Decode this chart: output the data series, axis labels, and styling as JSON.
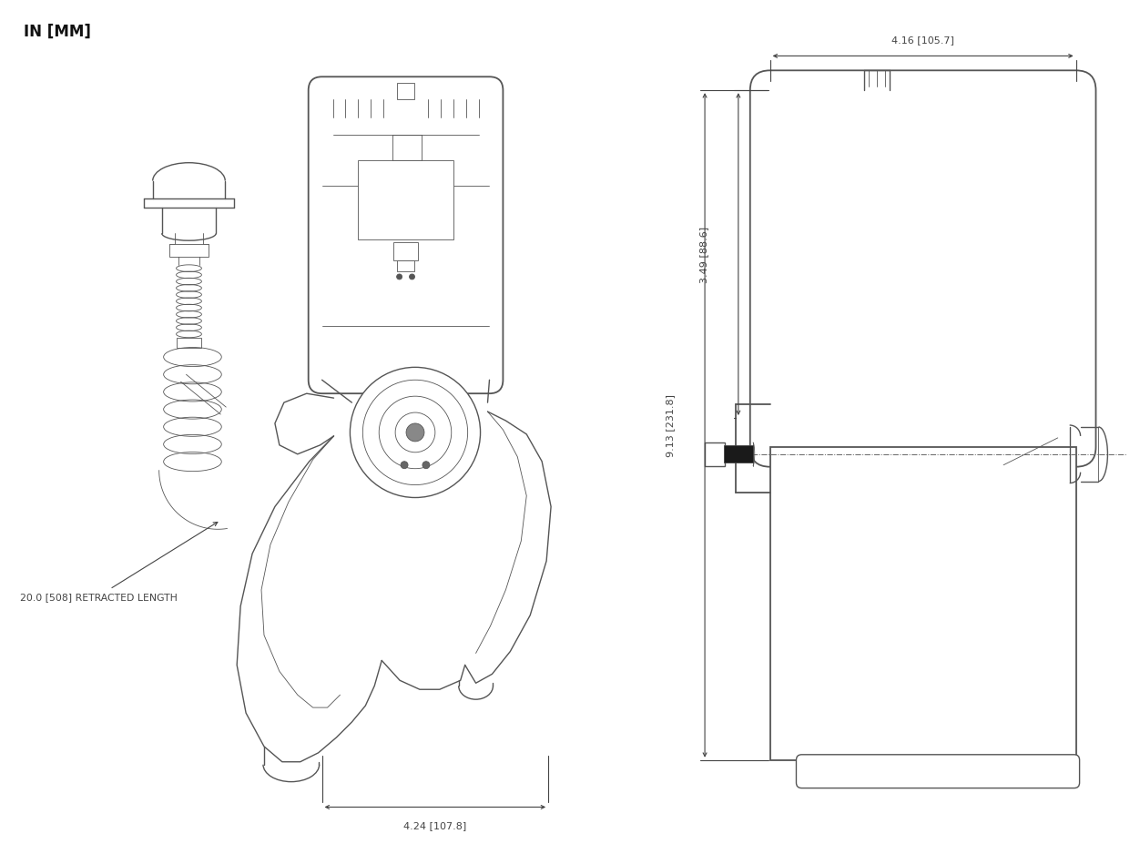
{
  "title": "IN [MM]",
  "title_fontsize": 12,
  "title_fontweight": "bold",
  "bg_color": "#ffffff",
  "line_color": "#555555",
  "dim_color": "#444444",
  "annotation_label_1": "20.0 [508] RETRACTED LENGTH",
  "annotation_label_2": "4.24 [107.8]",
  "annotation_label_3": "4.16 [105.7]",
  "annotation_label_4": "3.49 [88.6]",
  "annotation_label_5": "9.13 [231.8]",
  "lw": 1.0,
  "lw_thin": 0.6,
  "lw_thick": 1.3
}
